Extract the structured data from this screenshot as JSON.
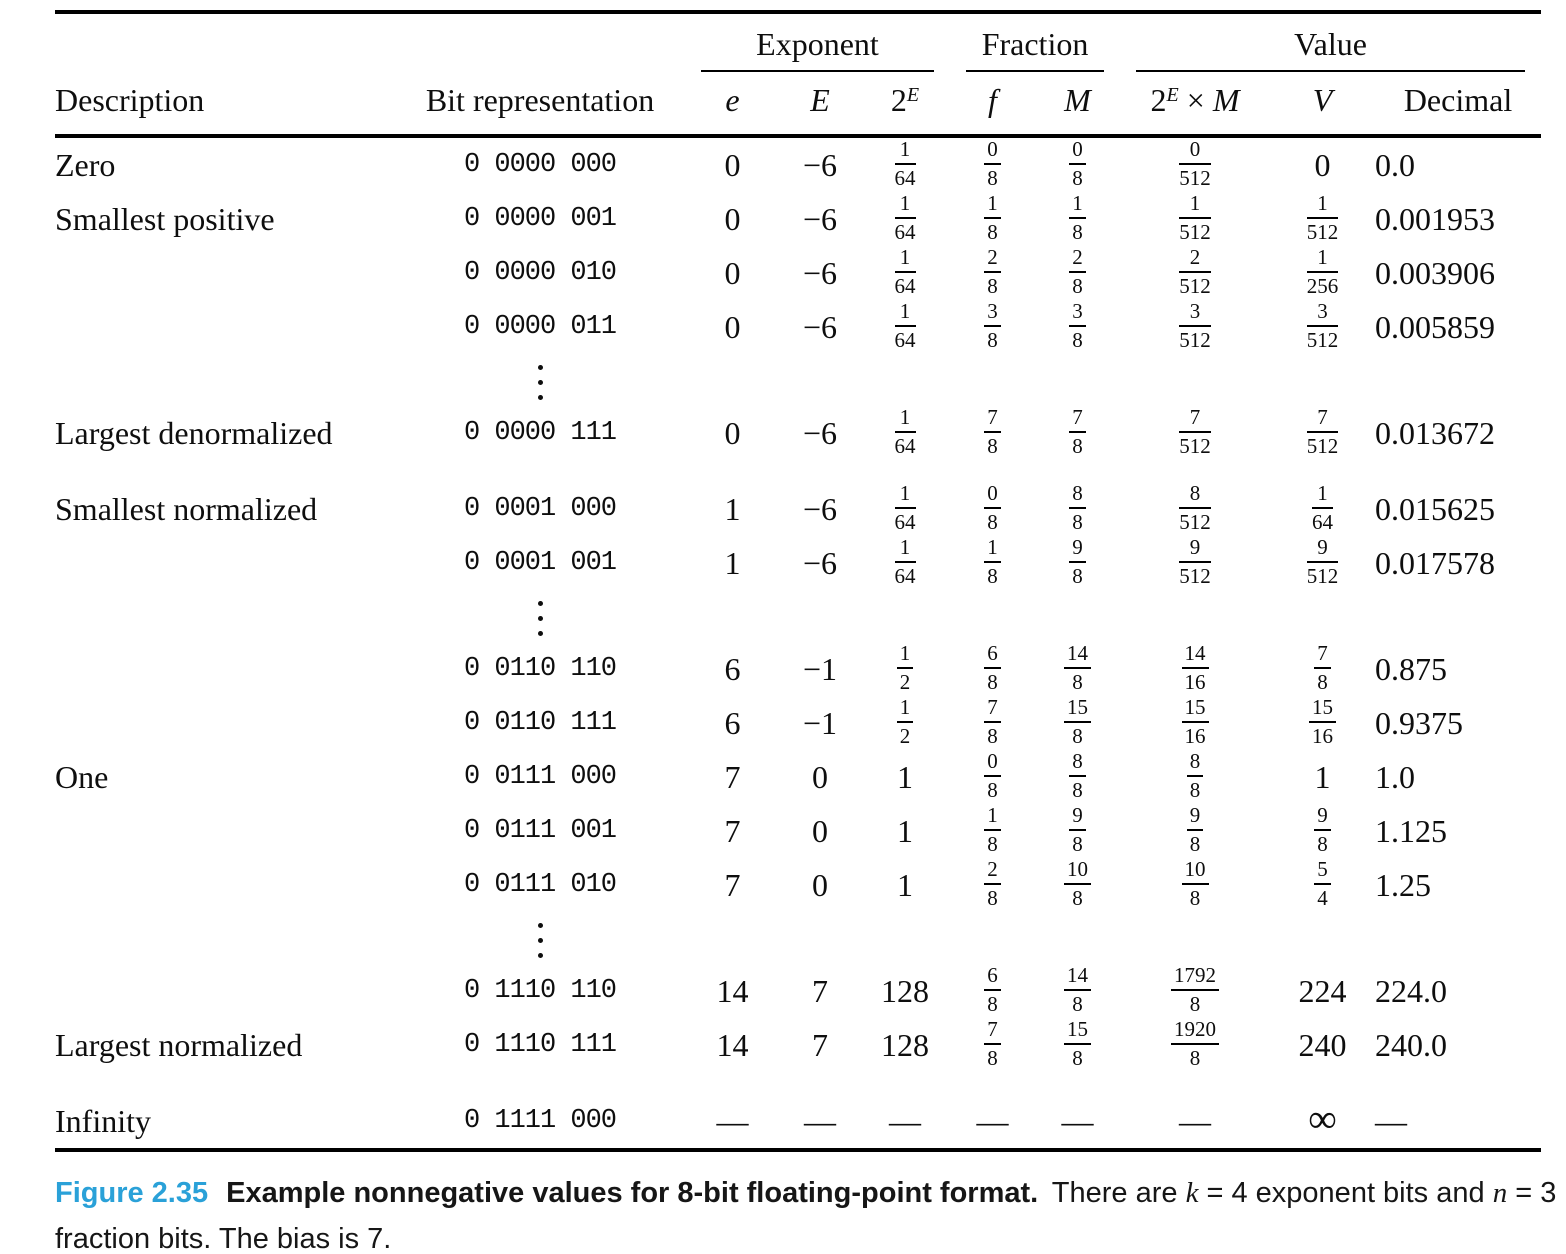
{
  "colors": {
    "figure_label": "#2aa1d8",
    "text": "#0e0e0e"
  },
  "table": {
    "groups": [
      {
        "label": "",
        "span": 2,
        "underline": false
      },
      {
        "label": "Exponent",
        "span": 3,
        "underline": true
      },
      {
        "label": "Fraction",
        "span": 2,
        "underline": true
      },
      {
        "label": "Value",
        "span": 3,
        "underline": true
      }
    ],
    "columns": [
      {
        "id": "description",
        "label": "Description",
        "math": false
      },
      {
        "id": "bits",
        "label": "Bit representation",
        "math": false
      },
      {
        "id": "e",
        "label": "e",
        "math": true
      },
      {
        "id": "E",
        "label": "E",
        "math": true
      },
      {
        "id": "twoE",
        "label": "2^E",
        "math": true
      },
      {
        "id": "f",
        "label": "f",
        "math": true
      },
      {
        "id": "M",
        "label": "M",
        "math": true
      },
      {
        "id": "prod",
        "label": "2^E × M",
        "math": true
      },
      {
        "id": "V",
        "label": "V",
        "math": true
      },
      {
        "id": "decimal",
        "label": "Decimal",
        "math": false
      }
    ],
    "rows": [
      {
        "description": "Zero",
        "bits": "0 0000 000",
        "e": "0",
        "E": "−6",
        "twoE": "1/64",
        "f": "0/8",
        "M": "0/8",
        "prod": "0/512",
        "V": "0",
        "decimal": "0.0"
      },
      {
        "description": "Smallest positive",
        "bits": "0 0000 001",
        "e": "0",
        "E": "−6",
        "twoE": "1/64",
        "f": "1/8",
        "M": "1/8",
        "prod": "1/512",
        "V": "1/512",
        "decimal": "0.001953"
      },
      {
        "description": "",
        "bits": "0 0000 010",
        "e": "0",
        "E": "−6",
        "twoE": "1/64",
        "f": "2/8",
        "M": "2/8",
        "prod": "2/512",
        "V": "1/256",
        "decimal": "0.003906"
      },
      {
        "description": "",
        "bits": "0 0000 011",
        "e": "0",
        "E": "−6",
        "twoE": "1/64",
        "f": "3/8",
        "M": "3/8",
        "prod": "3/512",
        "V": "3/512",
        "decimal": "0.005859"
      },
      {
        "type": "dots"
      },
      {
        "description": "Largest denormalized",
        "bits": "0 0000 111",
        "e": "0",
        "E": "−6",
        "twoE": "1/64",
        "f": "7/8",
        "M": "7/8",
        "prod": "7/512",
        "V": "7/512",
        "decimal": "0.013672"
      },
      {
        "description": "Smallest normalized",
        "bits": "0 0001 000",
        "e": "1",
        "E": "−6",
        "twoE": "1/64",
        "f": "0/8",
        "M": "8/8",
        "prod": "8/512",
        "V": "1/64",
        "decimal": "0.015625",
        "spacer_before": true
      },
      {
        "description": "",
        "bits": "0 0001 001",
        "e": "1",
        "E": "−6",
        "twoE": "1/64",
        "f": "1/8",
        "M": "9/8",
        "prod": "9/512",
        "V": "9/512",
        "decimal": "0.017578"
      },
      {
        "type": "dots"
      },
      {
        "description": "",
        "bits": "0 0110 110",
        "e": "6",
        "E": "−1",
        "twoE": "1/2",
        "f": "6/8",
        "M": "14/8",
        "prod": "14/16",
        "V": "7/8",
        "decimal": "0.875"
      },
      {
        "description": "",
        "bits": "0 0110 111",
        "e": "6",
        "E": "−1",
        "twoE": "1/2",
        "f": "7/8",
        "M": "15/8",
        "prod": "15/16",
        "V": "15/16",
        "decimal": "0.9375"
      },
      {
        "description": "One",
        "bits": "0 0111 000",
        "e": "7",
        "E": "0",
        "twoE": "1",
        "f": "0/8",
        "M": "8/8",
        "prod": "8/8",
        "V": "1",
        "decimal": "1.0"
      },
      {
        "description": "",
        "bits": "0 0111 001",
        "e": "7",
        "E": "0",
        "twoE": "1",
        "f": "1/8",
        "M": "9/8",
        "prod": "9/8",
        "V": "9/8",
        "decimal": "1.125"
      },
      {
        "description": "",
        "bits": "0 0111 010",
        "e": "7",
        "E": "0",
        "twoE": "1",
        "f": "2/8",
        "M": "10/8",
        "prod": "10/8",
        "V": "5/4",
        "decimal": "1.25"
      },
      {
        "type": "dots"
      },
      {
        "description": "",
        "bits": "0 1110 110",
        "e": "14",
        "E": "7",
        "twoE": "128",
        "f": "6/8",
        "M": "14/8",
        "prod": "1792/8",
        "V": "224",
        "decimal": "224.0"
      },
      {
        "description": "Largest normalized",
        "bits": "0 1110 111",
        "e": "14",
        "E": "7",
        "twoE": "128",
        "f": "7/8",
        "M": "15/8",
        "prod": "1920/8",
        "V": "240",
        "decimal": "240.0"
      },
      {
        "description": "Infinity",
        "bits": "0 1111 000",
        "e": "—",
        "E": "—",
        "twoE": "—",
        "f": "—",
        "M": "—",
        "prod": "—",
        "V": "∞",
        "decimal": "—",
        "spacer_before": true
      }
    ]
  },
  "caption": {
    "label": "Figure 2.35",
    "title": "Example nonnegative values for 8-bit floating-point format.",
    "body_segments": [
      {
        "text": "There are "
      },
      {
        "text": "k",
        "math": true
      },
      {
        "text": " = 4 exponent bits and "
      },
      {
        "text": "n",
        "math": true
      },
      {
        "text": " = 3 fraction bits. The bias is 7."
      }
    ]
  }
}
